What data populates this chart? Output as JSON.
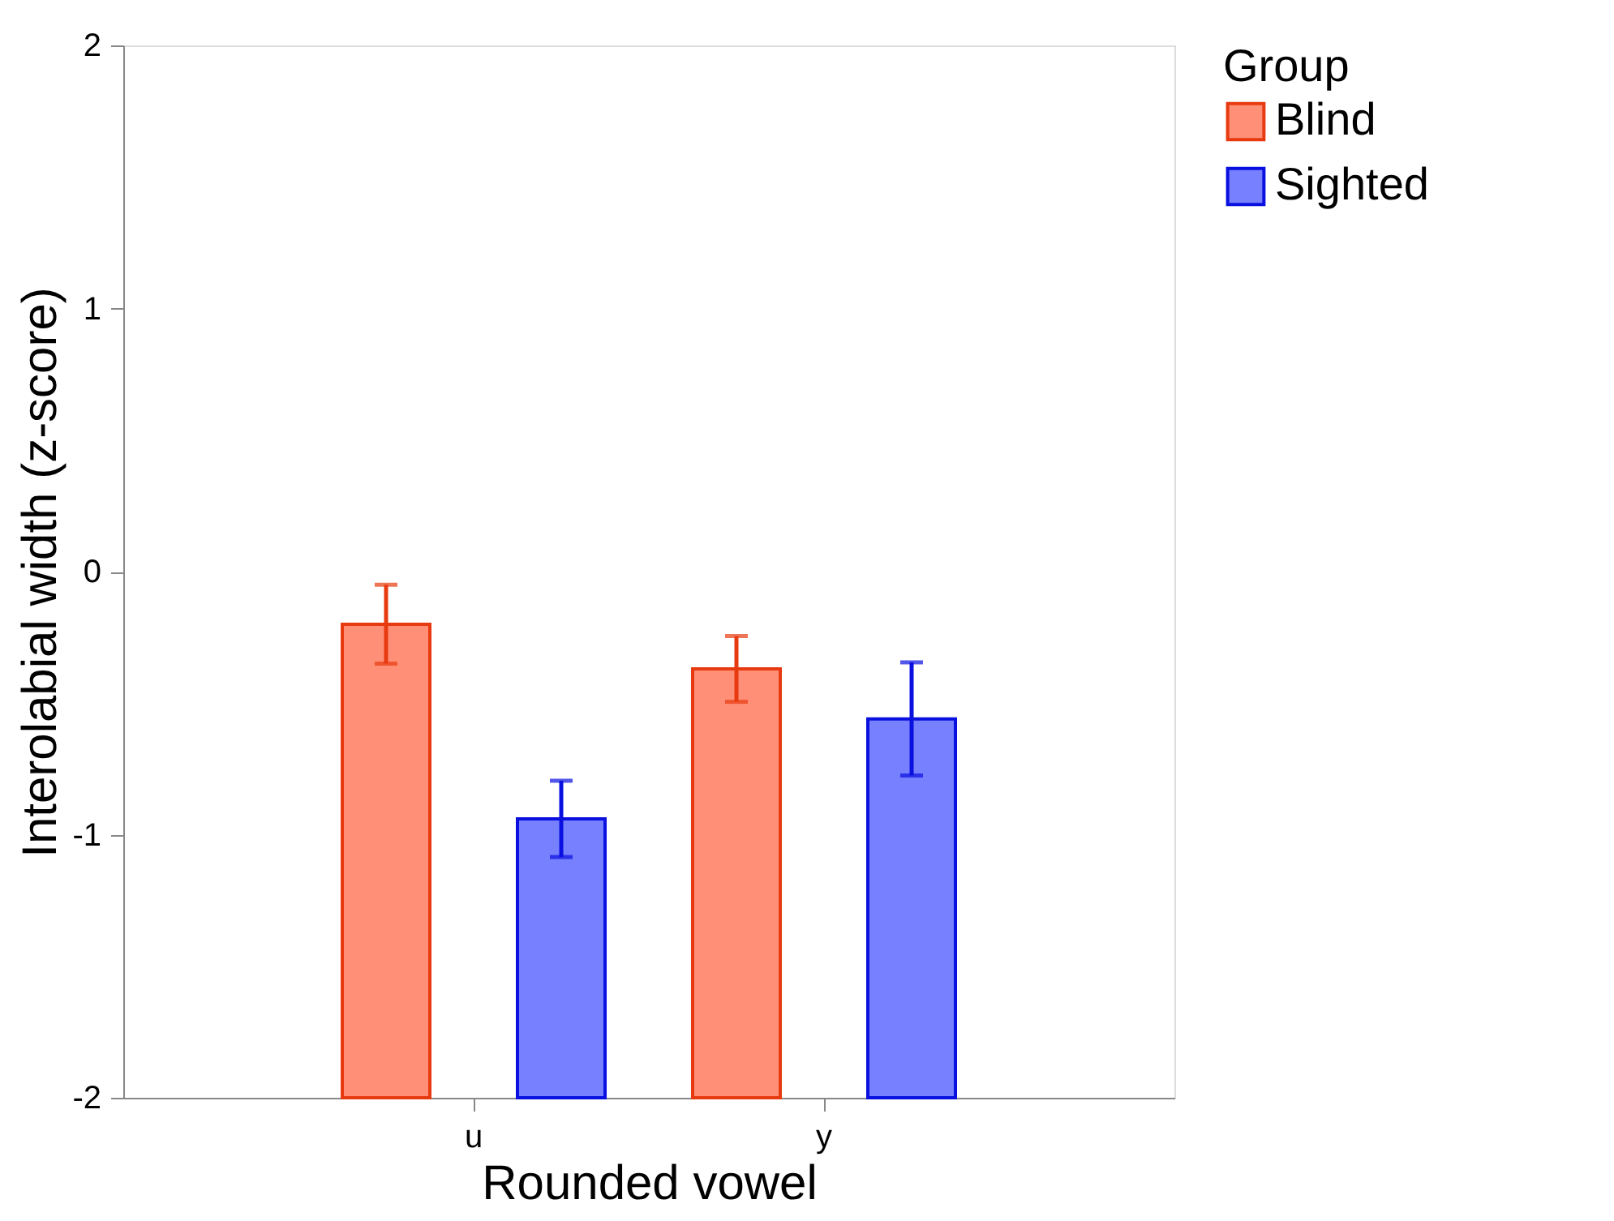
{
  "chart_data": {
    "type": "bar",
    "xlabel": "Rounded vowel",
    "ylabel": "Interolabial width (z-score)",
    "legend_title": "Group",
    "categories": [
      "u",
      "y"
    ],
    "series": [
      {
        "name": "Blind",
        "color": "#ff9077",
        "base": [
          -2,
          -2
        ],
        "values": [
          1.8,
          1.63
        ],
        "errors": [
          0.15,
          0.125
        ]
      },
      {
        "name": "Sighted",
        "color": "#7780ff",
        "base": [
          -2,
          -2
        ],
        "values": [
          1.06,
          1.44
        ],
        "errors": [
          0.145,
          0.215
        ]
      }
    ],
    "ylim": [
      -2,
      2
    ],
    "yticks": [
      {
        "value": -2,
        "label": "-2"
      },
      {
        "value": -1,
        "label": "-1"
      },
      {
        "value": 0,
        "label": "0"
      },
      {
        "value": 1,
        "label": "1"
      },
      {
        "value": 2,
        "label": "2"
      }
    ],
    "grid": false,
    "legend": "right"
  }
}
